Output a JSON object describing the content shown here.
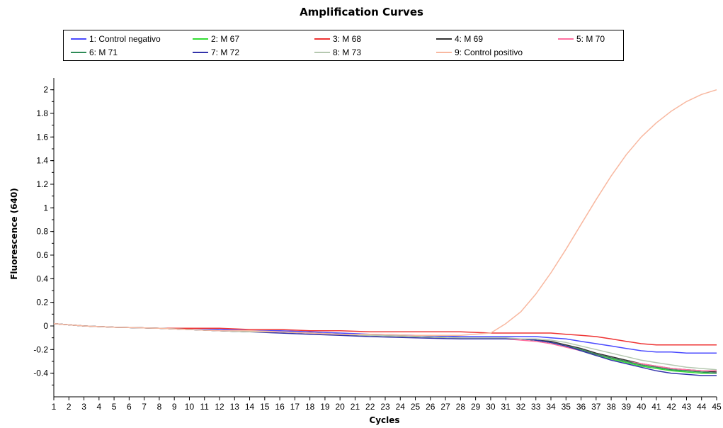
{
  "chart_data": {
    "type": "line",
    "title": "Amplification Curves",
    "xlabel": "Cycles",
    "ylabel": "Fluorescence (640)",
    "xlim": [
      1,
      45
    ],
    "ylim": [
      -0.6,
      2.1
    ],
    "y_ticks": [
      -0.4,
      -0.2,
      0,
      0.2,
      0.4,
      0.6,
      0.8,
      1,
      1.2,
      1.4,
      1.6,
      1.8,
      2
    ],
    "x_ticks": [
      1,
      2,
      3,
      4,
      5,
      6,
      7,
      8,
      9,
      10,
      11,
      12,
      13,
      14,
      15,
      16,
      17,
      18,
      19,
      20,
      21,
      22,
      23,
      24,
      25,
      26,
      27,
      28,
      29,
      30,
      31,
      32,
      33,
      34,
      35,
      36,
      37,
      38,
      39,
      40,
      41,
      42,
      43,
      44,
      45
    ],
    "grid": false,
    "legend_position": "top",
    "x": [
      1,
      3,
      5,
      8,
      10,
      12,
      14,
      16,
      18,
      20,
      22,
      25,
      28,
      30,
      31,
      32,
      33,
      34,
      35,
      36,
      37,
      38,
      39,
      40,
      41,
      42,
      43,
      44,
      45
    ],
    "series": [
      {
        "name": "1: Control negativo",
        "color": "#4a4aff",
        "values": [
          0.02,
          0.0,
          -0.01,
          -0.02,
          -0.03,
          -0.03,
          -0.04,
          -0.04,
          -0.05,
          -0.06,
          -0.07,
          -0.08,
          -0.09,
          -0.09,
          -0.09,
          -0.09,
          -0.09,
          -0.1,
          -0.11,
          -0.13,
          -0.15,
          -0.17,
          -0.19,
          -0.21,
          -0.22,
          -0.22,
          -0.23,
          -0.23,
          -0.23
        ]
      },
      {
        "name": "2: M 67",
        "color": "#33dd33",
        "values": [
          0.02,
          0.0,
          -0.01,
          -0.02,
          -0.03,
          -0.04,
          -0.05,
          -0.05,
          -0.06,
          -0.07,
          -0.08,
          -0.09,
          -0.1,
          -0.1,
          -0.11,
          -0.11,
          -0.12,
          -0.14,
          -0.17,
          -0.21,
          -0.25,
          -0.28,
          -0.31,
          -0.34,
          -0.36,
          -0.38,
          -0.39,
          -0.4,
          -0.4
        ]
      },
      {
        "name": "3: M 68",
        "color": "#ee3333",
        "values": [
          0.02,
          0.0,
          -0.01,
          -0.02,
          -0.02,
          -0.02,
          -0.03,
          -0.03,
          -0.04,
          -0.04,
          -0.05,
          -0.05,
          -0.05,
          -0.06,
          -0.06,
          -0.06,
          -0.06,
          -0.06,
          -0.07,
          -0.08,
          -0.09,
          -0.11,
          -0.13,
          -0.15,
          -0.16,
          -0.16,
          -0.16,
          -0.16,
          -0.16
        ]
      },
      {
        "name": "4: M 69",
        "color": "#333333",
        "values": [
          0.02,
          0.0,
          -0.01,
          -0.02,
          -0.03,
          -0.04,
          -0.05,
          -0.05,
          -0.06,
          -0.07,
          -0.08,
          -0.09,
          -0.1,
          -0.1,
          -0.11,
          -0.11,
          -0.12,
          -0.13,
          -0.16,
          -0.19,
          -0.23,
          -0.26,
          -0.29,
          -0.32,
          -0.34,
          -0.36,
          -0.37,
          -0.38,
          -0.39
        ]
      },
      {
        "name": "5: M 70",
        "color": "#ff6fa0",
        "values": [
          0.02,
          0.0,
          -0.01,
          -0.02,
          -0.03,
          -0.04,
          -0.04,
          -0.05,
          -0.06,
          -0.07,
          -0.08,
          -0.09,
          -0.1,
          -0.1,
          -0.11,
          -0.12,
          -0.13,
          -0.15,
          -0.18,
          -0.21,
          -0.24,
          -0.27,
          -0.3,
          -0.32,
          -0.34,
          -0.36,
          -0.37,
          -0.38,
          -0.38
        ]
      },
      {
        "name": "6: M 71",
        "color": "#2e8b57",
        "values": [
          0.02,
          0.0,
          -0.01,
          -0.02,
          -0.03,
          -0.04,
          -0.05,
          -0.05,
          -0.06,
          -0.07,
          -0.08,
          -0.09,
          -0.1,
          -0.1,
          -0.11,
          -0.11,
          -0.12,
          -0.14,
          -0.17,
          -0.2,
          -0.24,
          -0.27,
          -0.3,
          -0.33,
          -0.35,
          -0.37,
          -0.38,
          -0.39,
          -0.4
        ]
      },
      {
        "name": "7: M 72",
        "color": "#3333aa",
        "values": [
          0.02,
          0.0,
          -0.01,
          -0.02,
          -0.03,
          -0.04,
          -0.05,
          -0.06,
          -0.07,
          -0.08,
          -0.09,
          -0.1,
          -0.11,
          -0.11,
          -0.11,
          -0.11,
          -0.12,
          -0.14,
          -0.17,
          -0.21,
          -0.25,
          -0.29,
          -0.32,
          -0.35,
          -0.38,
          -0.4,
          -0.41,
          -0.42,
          -0.42
        ]
      },
      {
        "name": "8: M 73",
        "color": "#b5c8b0",
        "values": [
          0.02,
          0.0,
          -0.01,
          -0.02,
          -0.03,
          -0.04,
          -0.05,
          -0.05,
          -0.06,
          -0.07,
          -0.08,
          -0.09,
          -0.1,
          -0.1,
          -0.1,
          -0.11,
          -0.11,
          -0.12,
          -0.14,
          -0.17,
          -0.2,
          -0.23,
          -0.26,
          -0.29,
          -0.31,
          -0.33,
          -0.35,
          -0.36,
          -0.37
        ]
      },
      {
        "name": "9: Control positivo",
        "color": "#f8b8a0",
        "values": [
          0.02,
          0.0,
          -0.01,
          -0.02,
          -0.03,
          -0.04,
          -0.04,
          -0.05,
          -0.06,
          -0.07,
          -0.07,
          -0.08,
          -0.08,
          -0.06,
          0.02,
          0.12,
          0.27,
          0.45,
          0.65,
          0.86,
          1.07,
          1.27,
          1.45,
          1.6,
          1.72,
          1.82,
          1.9,
          1.96,
          2.0
        ]
      }
    ]
  }
}
